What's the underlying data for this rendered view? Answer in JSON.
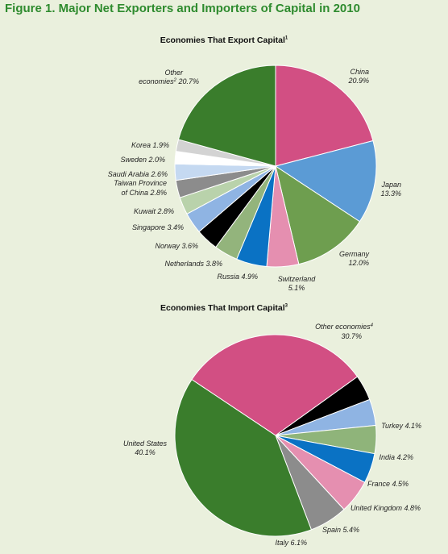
{
  "figure_title": "Figure 1. Major Net Exporters and Importers of Capital in 2010",
  "chart_data": [
    {
      "type": "pie",
      "title": "Economies That Export Capital",
      "title_note": "1",
      "slices": [
        {
          "label": "China",
          "value": 20.9,
          "value_text": "20.9%",
          "color": "#d24f83"
        },
        {
          "label": "Japan",
          "value": 13.3,
          "value_text": "13.3%",
          "color": "#5b9bd5"
        },
        {
          "label": "Germany",
          "value": 12.0,
          "value_text": "12.0%",
          "color": "#6e9e4f"
        },
        {
          "label": "Switzerland",
          "value": 5.1,
          "value_text": "5.1%",
          "color": "#e58fb0"
        },
        {
          "label": "Russia",
          "value": 4.9,
          "value_text": "4.9%",
          "color": "#0a72c4"
        },
        {
          "label": "Netherlands",
          "value": 3.8,
          "value_text": "3.8%",
          "color": "#93b47c"
        },
        {
          "label": "Norway",
          "value": 3.6,
          "value_text": "3.6%",
          "color": "#000000"
        },
        {
          "label": "Singapore",
          "value": 3.4,
          "value_text": "3.4%",
          "color": "#8fb4e3"
        },
        {
          "label": "Kuwait",
          "value": 2.8,
          "value_text": "2.8%",
          "color": "#b9d2ab"
        },
        {
          "label": "Taiwan Province of China",
          "value": 2.8,
          "value_text": "2.8%",
          "color": "#8c8c8c"
        },
        {
          "label": "Saudi Arabia",
          "value": 2.6,
          "value_text": "2.6%",
          "color": "#c5d9f1"
        },
        {
          "label": "Sweden",
          "value": 2.0,
          "value_text": "2.0%",
          "color": "#ffffff"
        },
        {
          "label": "Korea",
          "value": 1.9,
          "value_text": "1.9%",
          "color": "#d3d3d3"
        },
        {
          "label": "Other economies",
          "label_note": "2",
          "value": 20.7,
          "value_text": "20.7%",
          "color": "#3a7d2c"
        }
      ]
    },
    {
      "type": "pie",
      "title": "Economies That Import Capital",
      "title_note": "3",
      "slices": [
        {
          "label": "Other economies",
          "label_note": "4",
          "value": 30.7,
          "value_text": "30.7%",
          "color": "#d24f83"
        },
        {
          "label": "Turkey",
          "value": 4.1,
          "value_text": "4.1%",
          "color": "#000000"
        },
        {
          "label": "India",
          "value": 4.2,
          "value_text": "4.2%",
          "color": "#8fb4e3"
        },
        {
          "label": "France",
          "value": 4.5,
          "value_text": "4.5%",
          "color": "#8fb47a"
        },
        {
          "label": "United Kingdom",
          "value": 4.8,
          "value_text": "4.8%",
          "color": "#0a72c4"
        },
        {
          "label": "Spain",
          "value": 5.4,
          "value_text": "5.4%",
          "color": "#e58fb0"
        },
        {
          "label": "Italy",
          "value": 6.1,
          "value_text": "6.1%",
          "color": "#8c8c8c"
        },
        {
          "label": "United States",
          "value": 40.1,
          "value_text": "40.1%",
          "color": "#3a7d2c"
        }
      ]
    }
  ]
}
